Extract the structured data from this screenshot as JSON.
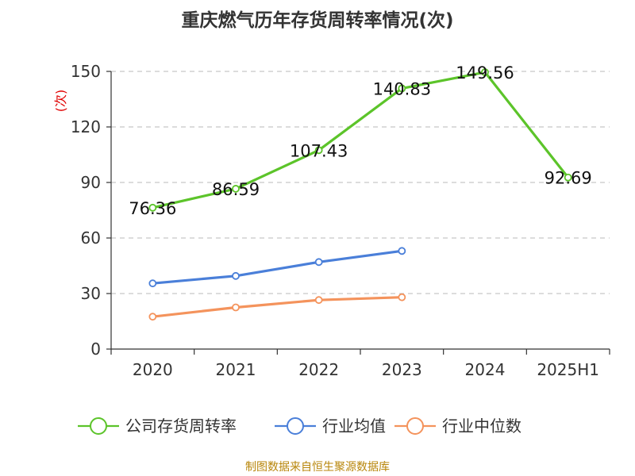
{
  "chart_data": {
    "type": "line",
    "title": "重庆燃气历年存货周转率情况(次)",
    "ylabel": "(次)",
    "xlabel": "",
    "categories": [
      "2020",
      "2021",
      "2022",
      "2023",
      "2024",
      "2025H1"
    ],
    "ylim": [
      0,
      150
    ],
    "yticks": [
      0,
      30,
      60,
      90,
      120,
      150
    ],
    "grid": true,
    "legend_position": "bottom",
    "series": [
      {
        "name": "公司存货周转率",
        "color": "#5cc42a",
        "values": [
          76.36,
          86.59,
          107.43,
          140.83,
          149.56,
          92.69
        ],
        "labels": true
      },
      {
        "name": "行业均值",
        "color": "#4a7fd9",
        "values": [
          35.5,
          39.5,
          47,
          53,
          null,
          null
        ],
        "labels": false
      },
      {
        "name": "行业中位数",
        "color": "#f4935c",
        "values": [
          17.5,
          22.5,
          26.5,
          28,
          null,
          null
        ],
        "labels": false
      }
    ]
  },
  "source_text": "制图数据来自恒生聚源数据库"
}
